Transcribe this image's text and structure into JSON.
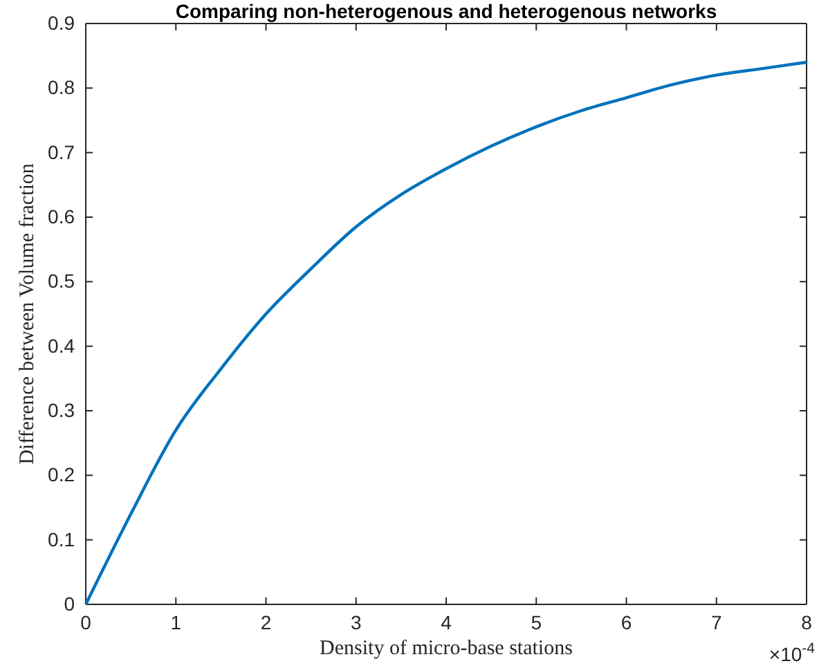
{
  "chart_data": {
    "type": "line",
    "title": "Comparing non-heterogenous and heterogenous networks",
    "xlabel": "Density of micro-base stations",
    "ylabel": "Difference between Volume fraction",
    "x": [
      0,
      0.5,
      1,
      1.5,
      2,
      2.5,
      3,
      3.5,
      4,
      4.5,
      5,
      5.5,
      6,
      6.5,
      7,
      7.5,
      8
    ],
    "series": [
      {
        "color": "#0072bd",
        "values": [
          0,
          0.14,
          0.27,
          0.365,
          0.45,
          0.52,
          0.585,
          0.635,
          0.675,
          0.71,
          0.74,
          0.765,
          0.785,
          0.805,
          0.82,
          0.83,
          0.84
        ]
      }
    ],
    "xlim": [
      0,
      8
    ],
    "xticks": [
      0,
      1,
      2,
      3,
      4,
      5,
      6,
      7,
      8
    ],
    "ylim": [
      0,
      0.9
    ],
    "yticks": [
      0,
      0.1,
      0.2,
      0.3,
      0.4,
      0.5,
      0.6,
      0.7,
      0.8,
      0.9
    ],
    "annotations": [
      "×10$^{-4}$"
    ],
    "marker": "none",
    "line_style": "solid"
  }
}
